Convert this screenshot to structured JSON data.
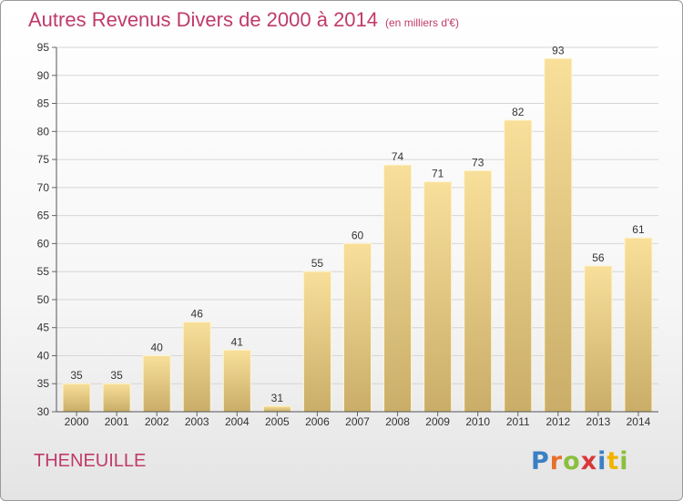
{
  "title": "Autres Revenus Divers de 2000 à 2014",
  "title_unit": "(en milliers d'€)",
  "commune": "THENEUILLE",
  "logo": {
    "text": "Proxiti",
    "letters": [
      {
        "ch": "P",
        "color": "#3b7fc4"
      },
      {
        "ch": "r",
        "color": "#e8702a"
      },
      {
        "ch": "o",
        "color": "#8bbf3c"
      },
      {
        "ch": "x",
        "color": "#d9383a"
      },
      {
        "ch": "i",
        "color": "#3b7fc4"
      },
      {
        "ch": "t",
        "color": "#f0b400"
      },
      {
        "ch": "i",
        "color": "#8bbf3c"
      }
    ]
  },
  "colors": {
    "title": "#c03a6a",
    "bar_light": "#f8df9a",
    "bar_dark": "#c9ad68",
    "grid": "#d6d6d6"
  },
  "chart_data": {
    "type": "bar",
    "title": "Autres Revenus Divers de 2000 à 2014",
    "subtitle": "(en milliers d'€)",
    "categories": [
      "2000",
      "2001",
      "2002",
      "2003",
      "2004",
      "2005",
      "2006",
      "2007",
      "2008",
      "2009",
      "2010",
      "2011",
      "2012",
      "2013",
      "2014"
    ],
    "values": [
      35,
      35,
      40,
      46,
      41,
      31,
      55,
      60,
      74,
      71,
      73,
      82,
      93,
      56,
      61
    ],
    "ylim": [
      30,
      95
    ],
    "yticks": [
      30,
      35,
      40,
      45,
      50,
      55,
      60,
      65,
      70,
      75,
      80,
      85,
      90,
      95
    ],
    "grid": true,
    "xlabel": "",
    "ylabel": ""
  }
}
